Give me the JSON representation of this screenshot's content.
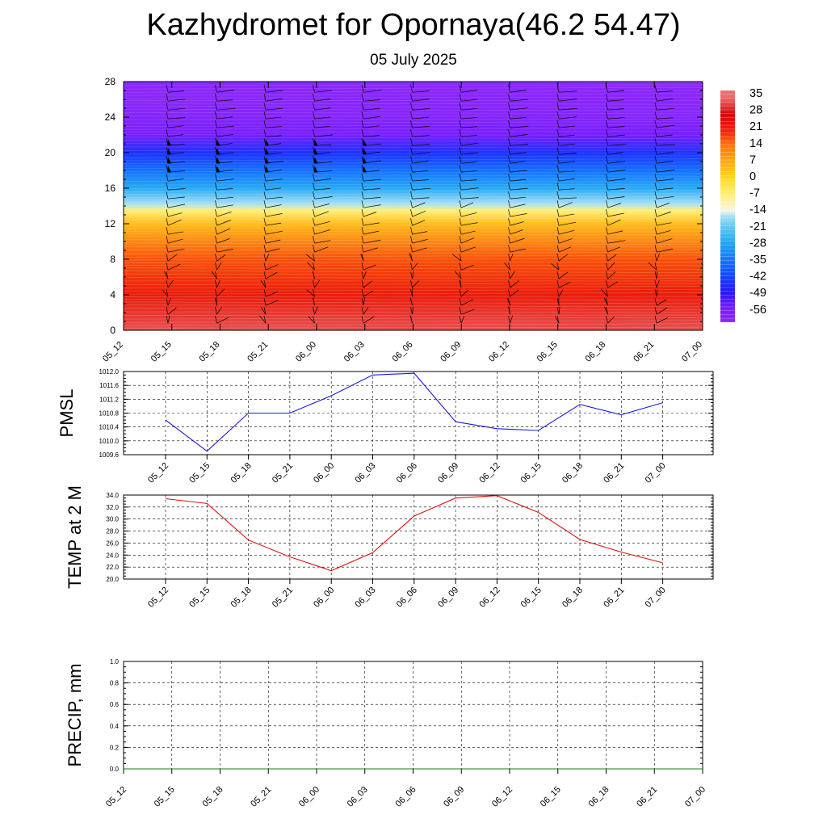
{
  "title": "Kazhydromet for Opornaya(46.2 54.47)",
  "subtitle": "05 July 2025",
  "colors": {
    "pmsl_line": "#1a1ad9",
    "temp_line": "#e01010",
    "precip_line": "#1a7a1a",
    "barb": "#000000"
  },
  "chart_data": [
    {
      "type": "heatmap",
      "name": "cross-section",
      "title": "",
      "xlabel": "",
      "ylabel": "",
      "ylim": [
        0,
        28
      ],
      "y_ticks": [
        "0",
        "4",
        "8",
        "12",
        "16",
        "20",
        "24",
        "28"
      ],
      "x_ticks": [
        "05_12",
        "05_15",
        "05_18",
        "05_21",
        "06_00",
        "06_03",
        "06_06",
        "06_09",
        "06_12",
        "06_15",
        "06_18",
        "06_21",
        "07_00"
      ],
      "colorbar_labels": [
        "35",
        "28",
        "21",
        "14",
        "7",
        "0",
        "-7",
        "-14",
        "-21",
        "-28",
        "-35",
        "-42",
        "-49",
        "-56"
      ],
      "temperature_profile": [
        {
          "level": 0,
          "t": 33
        },
        {
          "level": 4,
          "t": 22
        },
        {
          "level": 8,
          "t": 17
        },
        {
          "level": 12,
          "t": 4
        },
        {
          "level": 13.5,
          "t": -7
        },
        {
          "level": 14.2,
          "t": -16
        },
        {
          "level": 16,
          "t": -27
        },
        {
          "level": 18,
          "t": -36
        },
        {
          "level": 20,
          "t": -45
        },
        {
          "level": 22,
          "t": -56
        },
        {
          "level": 24,
          "t": -60
        },
        {
          "level": 28,
          "t": -62
        }
      ],
      "wind_barbs": "on",
      "legend": "right"
    },
    {
      "type": "line",
      "name": "pmsl",
      "ylabel": "PMSL",
      "ylim": [
        1009.6,
        1012.0
      ],
      "y_ticks": [
        "1009.6",
        "1010.0",
        "1010.4",
        "1010.8",
        "1011.2",
        "1011.6",
        "1012.0"
      ],
      "categories": [
        "05_12",
        "05_15",
        "05_18",
        "05_21",
        "06_00",
        "06_03",
        "06_06",
        "06_09",
        "06_12",
        "06_15",
        "06_18",
        "06_21",
        "07_00"
      ],
      "values": [
        1010.6,
        1009.7,
        1010.8,
        1010.8,
        1011.3,
        1011.9,
        1011.95,
        1010.55,
        1010.35,
        1010.3,
        1011.05,
        1010.75,
        1011.1
      ],
      "grid": "on"
    },
    {
      "type": "line",
      "name": "temp",
      "ylabel": "TEMP at 2 M",
      "ylim": [
        20.0,
        34.0
      ],
      "y_ticks": [
        "20.0",
        "22.0",
        "24.0",
        "26.0",
        "28.0",
        "30.0",
        "32.0",
        "34.0"
      ],
      "categories": [
        "05_12",
        "05_15",
        "05_18",
        "05_21",
        "06_00",
        "06_03",
        "06_06",
        "06_09",
        "06_12",
        "06_15",
        "06_18",
        "06_21",
        "07_00"
      ],
      "values": [
        33.4,
        32.6,
        26.5,
        23.7,
        21.4,
        24.4,
        30.5,
        33.5,
        33.9,
        31.1,
        26.6,
        24.5,
        22.7
      ],
      "grid": "on"
    },
    {
      "type": "line",
      "name": "precip",
      "ylabel": "PRECIP, mm",
      "ylim": [
        0.0,
        1.0
      ],
      "y_ticks": [
        "0.0",
        "0.2",
        "0.4",
        "0.6",
        "0.8",
        "1.0"
      ],
      "categories": [
        "05_12",
        "05_15",
        "05_18",
        "05_21",
        "06_00",
        "06_03",
        "06_06",
        "06_09",
        "06_12",
        "06_15",
        "06_18",
        "06_21",
        "07_00"
      ],
      "values": [
        0,
        0,
        0,
        0,
        0,
        0,
        0,
        0,
        0,
        0,
        0,
        0,
        0
      ],
      "grid": "on"
    }
  ]
}
